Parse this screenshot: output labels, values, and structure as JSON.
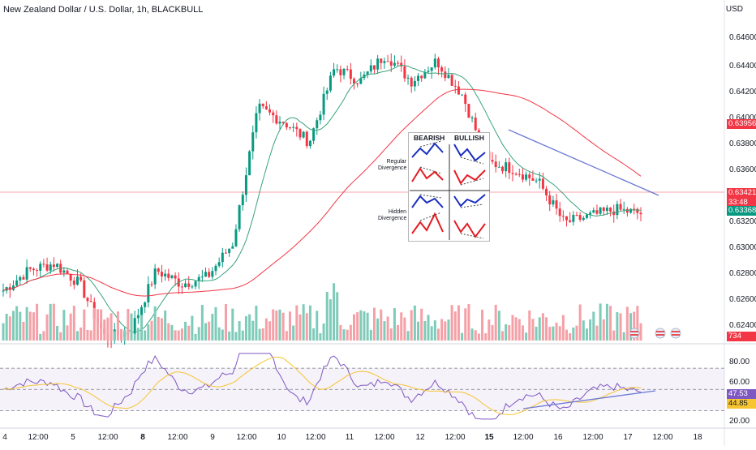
{
  "header": {
    "symbol_title": "New Zealand Dollar / U.S. Dollar, 1h, BLACKBULL",
    "currency": "USD"
  },
  "price_axis": {
    "ticks": [
      "0.64600",
      "0.64400",
      "0.64200",
      "0.64000",
      "0.63800",
      "0.63600",
      "0.63200",
      "0.63000",
      "0.62800",
      "0.62600",
      "0.62400"
    ],
    "badge_ma_red": "0.63956",
    "badge_last_price": "0.63421",
    "badge_countdown": "33:48",
    "badge_ma_green": "0.63368",
    "badge_volume": "734",
    "colors": {
      "red": "#f23645",
      "green": "#089981",
      "bull": "#089981",
      "bear": "#f23645"
    }
  },
  "rsi_axis": {
    "ticks": [
      "80.00",
      "60.00",
      "20.00"
    ],
    "badge_rsi": "47.53",
    "badge_rsi_ma": "44.85",
    "colors": {
      "rsi": "#7e57c2",
      "ma": "#f7c531"
    }
  },
  "time_axis": {
    "labels": [
      {
        "t": "4",
        "bold": false
      },
      {
        "t": "12:00",
        "bold": false
      },
      {
        "t": "5",
        "bold": false
      },
      {
        "t": "12:00",
        "bold": false
      },
      {
        "t": "8",
        "bold": true
      },
      {
        "t": "12:00",
        "bold": false
      },
      {
        "t": "9",
        "bold": false
      },
      {
        "t": "12:00",
        "bold": false
      },
      {
        "t": "10",
        "bold": false
      },
      {
        "t": "12:00",
        "bold": false
      },
      {
        "t": "11",
        "bold": false
      },
      {
        "t": "12:00",
        "bold": false
      },
      {
        "t": "12",
        "bold": false
      },
      {
        "t": "12:00",
        "bold": false
      },
      {
        "t": "15",
        "bold": true
      },
      {
        "t": "12:00",
        "bold": false
      },
      {
        "t": "16",
        "bold": false
      },
      {
        "t": "12:00",
        "bold": false
      },
      {
        "t": "17",
        "bold": false
      },
      {
        "t": "12:00",
        "bold": false
      },
      {
        "t": "18",
        "bold": false
      }
    ]
  },
  "divergence_inset": {
    "col_bearish": "BEARISH",
    "col_bullish": "BULLISH",
    "row_regular_1": "Regular",
    "row_regular_2": "Divergence",
    "row_hidden_1": "Hidden",
    "row_hidden_2": "Divergence"
  },
  "chart_data": {
    "type": "candlestick",
    "symbol": "NZDUSD",
    "interval": "1h",
    "ylim": [
      0.623,
      0.647
    ],
    "series_close_keypoints": [
      {
        "x": "4",
        "close": 0.6285
      },
      {
        "x": "4 12:00",
        "close": 0.63
      },
      {
        "x": "5",
        "close": 0.6305
      },
      {
        "x": "5 12:00",
        "close": 0.629
      },
      {
        "x": "8",
        "close": 0.625
      },
      {
        "x": "8 12:00",
        "close": 0.6255
      },
      {
        "x": "9",
        "close": 0.63
      },
      {
        "x": "9 12:00",
        "close": 0.629
      },
      {
        "x": "10",
        "close": 0.6295
      },
      {
        "x": "10 12:00",
        "close": 0.632
      },
      {
        "x": "10 18:00",
        "close": 0.642
      },
      {
        "x": "11",
        "close": 0.641
      },
      {
        "x": "11 12:00",
        "close": 0.6395
      },
      {
        "x": "11 18:00",
        "close": 0.645
      },
      {
        "x": "12",
        "close": 0.644
      },
      {
        "x": "12 06:00",
        "close": 0.646
      },
      {
        "x": "12 12:00",
        "close": 0.644
      },
      {
        "x": "12 18:00",
        "close": 0.6455
      },
      {
        "x": "15",
        "close": 0.643
      },
      {
        "x": "15 06:00",
        "close": 0.638
      },
      {
        "x": "15 12:00",
        "close": 0.6375
      },
      {
        "x": "16",
        "close": 0.6365
      },
      {
        "x": "16 06:00",
        "close": 0.6335
      },
      {
        "x": "16 12:00",
        "close": 0.634
      },
      {
        "x": "17",
        "close": 0.6345
      },
      {
        "x": "17 06:00",
        "close": 0.6342
      }
    ],
    "rsi_ylim": [
      15,
      90
    ],
    "rsi_levels": [
      70,
      50,
      30
    ]
  }
}
